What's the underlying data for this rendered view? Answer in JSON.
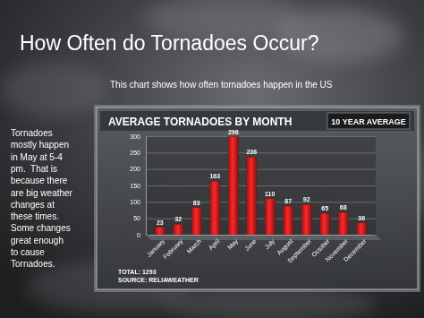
{
  "page": {
    "title": "How Often do Tornadoes Occur?",
    "subtitle": "This chart shows how often tornadoes happen in the US",
    "text_lines": [
      "Tornadoes",
      "mostly happen",
      "in May at 5-4",
      "pm.  That is",
      "because there",
      "are big weather",
      "changes at",
      "these times.",
      "Some changes",
      "great enough",
      "to cause",
      "Tornadoes."
    ]
  },
  "chart_data": {
    "type": "bar",
    "title": "AVERAGE TORNADOES BY MONTH",
    "subtitle": "10 YEAR AVERAGE",
    "categories": [
      "January",
      "February",
      "March",
      "April",
      "May",
      "June",
      "July",
      "August",
      "September",
      "October",
      "November",
      "December"
    ],
    "values": [
      23,
      32,
      83,
      163,
      298,
      236,
      110,
      87,
      92,
      65,
      68,
      36
    ],
    "color": "#c81e1e",
    "ylim": [
      0,
      300
    ],
    "yticks": [
      0,
      50,
      100,
      150,
      200,
      250,
      300
    ],
    "grid": true,
    "data_labels": true,
    "annotations": [
      "TOTAL: 1293",
      "SOURCE: RELIAWEATHER"
    ]
  }
}
